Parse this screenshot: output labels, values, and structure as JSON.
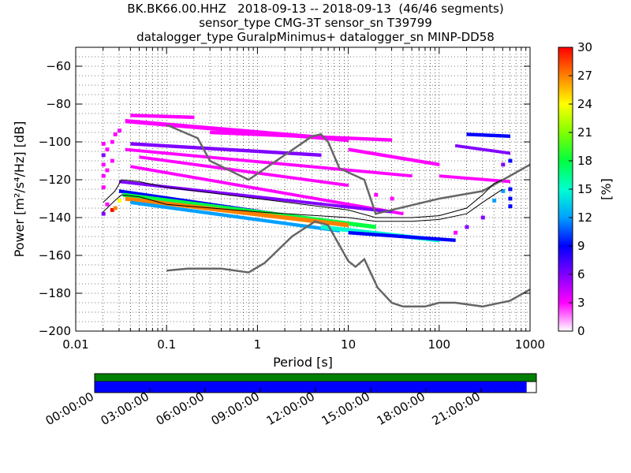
{
  "title": {
    "line1": "BK.BK66.00.HHZ   2018-09-13 -- 2018-09-13  (46/46 segments)",
    "line2": "sensor_type CMG-3T sensor_sn T39799",
    "line3": "datalogger_type GuralpMinimus+ datalogger_sn MINP-DD58"
  },
  "chart_data": {
    "type": "heatmap",
    "xlabel": "Period [s]",
    "ylabel": "Power [m²/s⁴/Hz] [dB]",
    "xscale": "log",
    "xlim": [
      0.01,
      1000
    ],
    "ylim": [
      -200,
      -50
    ],
    "xticks": [
      {
        "value": 0.01,
        "label": "0.01"
      },
      {
        "value": 0.1,
        "label": "0.1"
      },
      {
        "value": 1,
        "label": "1"
      },
      {
        "value": 10,
        "label": "10"
      },
      {
        "value": 100,
        "label": "100"
      },
      {
        "value": 1000,
        "label": "1000"
      }
    ],
    "yticks": [
      -60,
      -80,
      -100,
      -120,
      -140,
      -160,
      -180,
      -200
    ],
    "grid": true,
    "colorbar": {
      "label": "[%]",
      "range": [
        0,
        30
      ],
      "ticks": [
        0,
        3,
        6,
        9,
        12,
        15,
        18,
        21,
        24,
        27,
        30
      ],
      "colors": [
        "#ffffff",
        "#ff00ff",
        "#8000ff",
        "#0000ff",
        "#00a0ff",
        "#00ffd0",
        "#00ff40",
        "#80ff00",
        "#ffff00",
        "#ff8000",
        "#ff0000"
      ]
    },
    "noise_models": {
      "color": "#666666",
      "nhnm": [
        [
          0.1,
          -91
        ],
        [
          0.22,
          -98
        ],
        [
          0.3,
          -110
        ],
        [
          0.8,
          -120
        ],
        [
          4,
          -97
        ],
        [
          5,
          -96
        ],
        [
          6,
          -100
        ],
        [
          8,
          -114
        ],
        [
          15,
          -120
        ],
        [
          20,
          -138
        ],
        [
          100,
          -130
        ],
        [
          300,
          -126
        ],
        [
          600,
          -118
        ],
        [
          1000,
          -112
        ]
      ],
      "nlnm": [
        [
          0.1,
          -168
        ],
        [
          0.17,
          -167
        ],
        [
          0.4,
          -167
        ],
        [
          0.8,
          -169
        ],
        [
          1.2,
          -164
        ],
        [
          2.4,
          -150
        ],
        [
          4.3,
          -142
        ],
        [
          6,
          -144
        ],
        [
          10,
          -163
        ],
        [
          12,
          -166
        ],
        [
          15,
          -162
        ],
        [
          21,
          -177
        ],
        [
          30,
          -185
        ],
        [
          40,
          -187
        ],
        [
          70,
          -187
        ],
        [
          100,
          -185
        ],
        [
          150,
          -185
        ],
        [
          300,
          -187
        ],
        [
          600,
          -184
        ],
        [
          1000,
          -178
        ]
      ]
    },
    "percentile_lines": {
      "color": "#000000",
      "upper": [
        [
          0.02,
          -132
        ],
        [
          0.027,
          -126
        ],
        [
          0.032,
          -120
        ],
        [
          0.05,
          -121
        ],
        [
          0.1,
          -124
        ],
        [
          1,
          -130
        ],
        [
          10,
          -136
        ],
        [
          20,
          -140
        ],
        [
          50,
          -140
        ],
        [
          100,
          -139
        ],
        [
          200,
          -135
        ],
        [
          300,
          -128
        ],
        [
          400,
          -122
        ],
        [
          500,
          -120
        ]
      ],
      "lower": [
        [
          0.02,
          -137
        ],
        [
          0.027,
          -131
        ],
        [
          0.032,
          -128
        ],
        [
          0.05,
          -129
        ],
        [
          0.1,
          -133
        ],
        [
          1,
          -137
        ],
        [
          10,
          -140
        ],
        [
          20,
          -142
        ],
        [
          50,
          -142
        ],
        [
          100,
          -141
        ],
        [
          200,
          -138
        ],
        [
          300,
          -132
        ],
        [
          400,
          -128
        ],
        [
          500,
          -125
        ]
      ]
    },
    "bands": [
      {
        "x": [
          0.035,
          10
        ],
        "y": [
          -89,
          -99
        ],
        "w": 2.2,
        "c": 1
      },
      {
        "x": [
          0.04,
          0.2
        ],
        "y": [
          -86,
          -87
        ],
        "w": 1.8,
        "c": 1
      },
      {
        "x": [
          0.3,
          30
        ],
        "y": [
          -95,
          -99
        ],
        "w": 1.8,
        "c": 1
      },
      {
        "x": [
          0.04,
          5
        ],
        "y": [
          -101,
          -107
        ],
        "w": 1.8,
        "c": 2
      },
      {
        "x": [
          10,
          100
        ],
        "y": [
          -104,
          -112
        ],
        "w": 1.8,
        "c": 1
      },
      {
        "x": [
          0.035,
          50
        ],
        "y": [
          -104,
          -118
        ],
        "w": 1.6,
        "c": 1
      },
      {
        "x": [
          0.05,
          10
        ],
        "y": [
          -108,
          -123
        ],
        "w": 1.6,
        "c": 1
      },
      {
        "x": [
          0.04,
          40
        ],
        "y": [
          -113,
          -138
        ],
        "w": 1.6,
        "c": 1
      },
      {
        "x": [
          0.03,
          30
        ],
        "y": [
          -121,
          -137
        ],
        "w": 1.6,
        "c": 2
      },
      {
        "x": [
          0.03,
          8
        ],
        "y": [
          -126,
          -143
        ],
        "w": 1.8,
        "c": 3
      },
      {
        "x": [
          0.033,
          20
        ],
        "y": [
          -128,
          -145
        ],
        "w": 2.2,
        "c": 6
      },
      {
        "x": [
          0.035,
          10
        ],
        "y": [
          -130,
          -144
        ],
        "w": 2.2,
        "c": 9
      },
      {
        "x": [
          0.04,
          8
        ],
        "y": [
          -132,
          -147
        ],
        "w": 1.8,
        "c": 4
      },
      {
        "x": [
          5,
          100
        ],
        "y": [
          -145,
          -152
        ],
        "w": 2.2,
        "c": 5
      },
      {
        "x": [
          10,
          150
        ],
        "y": [
          -148,
          -152
        ],
        "w": 1.8,
        "c": 3
      },
      {
        "x": [
          100,
          600
        ],
        "y": [
          -118,
          -121
        ],
        "w": 1.6,
        "c": 1
      },
      {
        "x": [
          200,
          600
        ],
        "y": [
          -96,
          -97
        ],
        "w": 1.8,
        "c": 3
      },
      {
        "x": [
          150,
          600
        ],
        "y": [
          -102,
          -106
        ],
        "w": 1.6,
        "c": 2
      }
    ],
    "speckles": [
      {
        "x": 0.02,
        "y": -101,
        "c": 1
      },
      {
        "x": 0.02,
        "y": -107,
        "c": 2
      },
      {
        "x": 0.02,
        "y": -112,
        "c": 1
      },
      {
        "x": 0.02,
        "y": -118,
        "c": 1
      },
      {
        "x": 0.02,
        "y": -124,
        "c": 1
      },
      {
        "x": 0.02,
        "y": -138,
        "c": 2
      },
      {
        "x": 0.022,
        "y": -104,
        "c": 1
      },
      {
        "x": 0.022,
        "y": -115,
        "c": 1
      },
      {
        "x": 0.022,
        "y": -133,
        "c": 1
      },
      {
        "x": 0.025,
        "y": -100,
        "c": 1
      },
      {
        "x": 0.025,
        "y": -110,
        "c": 1
      },
      {
        "x": 0.025,
        "y": -136,
        "c": 10
      },
      {
        "x": 0.027,
        "y": -96,
        "c": 1
      },
      {
        "x": 0.027,
        "y": -135,
        "c": 9
      },
      {
        "x": 0.03,
        "y": -94,
        "c": 1
      },
      {
        "x": 0.03,
        "y": -131,
        "c": 8
      },
      {
        "x": 600,
        "y": -110,
        "c": 3
      },
      {
        "x": 600,
        "y": -125,
        "c": 3
      },
      {
        "x": 600,
        "y": -130,
        "c": 3
      },
      {
        "x": 600,
        "y": -134,
        "c": 3
      },
      {
        "x": 500,
        "y": -126,
        "c": 4
      },
      {
        "x": 500,
        "y": -112,
        "c": 2
      },
      {
        "x": 400,
        "y": -131,
        "c": 4
      },
      {
        "x": 300,
        "y": -140,
        "c": 2
      },
      {
        "x": 200,
        "y": -145,
        "c": 2
      },
      {
        "x": 150,
        "y": -148,
        "c": 1
      },
      {
        "x": 20,
        "y": -128,
        "c": 1
      },
      {
        "x": 30,
        "y": -130,
        "c": 1
      }
    ]
  },
  "timeline": {
    "data_bar_color": "#008000",
    "coverage_bar_color": "#0000ff",
    "coverage_fraction": 0.978,
    "tick_labels": [
      "00:00:00",
      "03:00:00",
      "06:00:00",
      "09:00:00",
      "12:00:00",
      "15:00:00",
      "18:00:00",
      "21:00:00"
    ]
  }
}
